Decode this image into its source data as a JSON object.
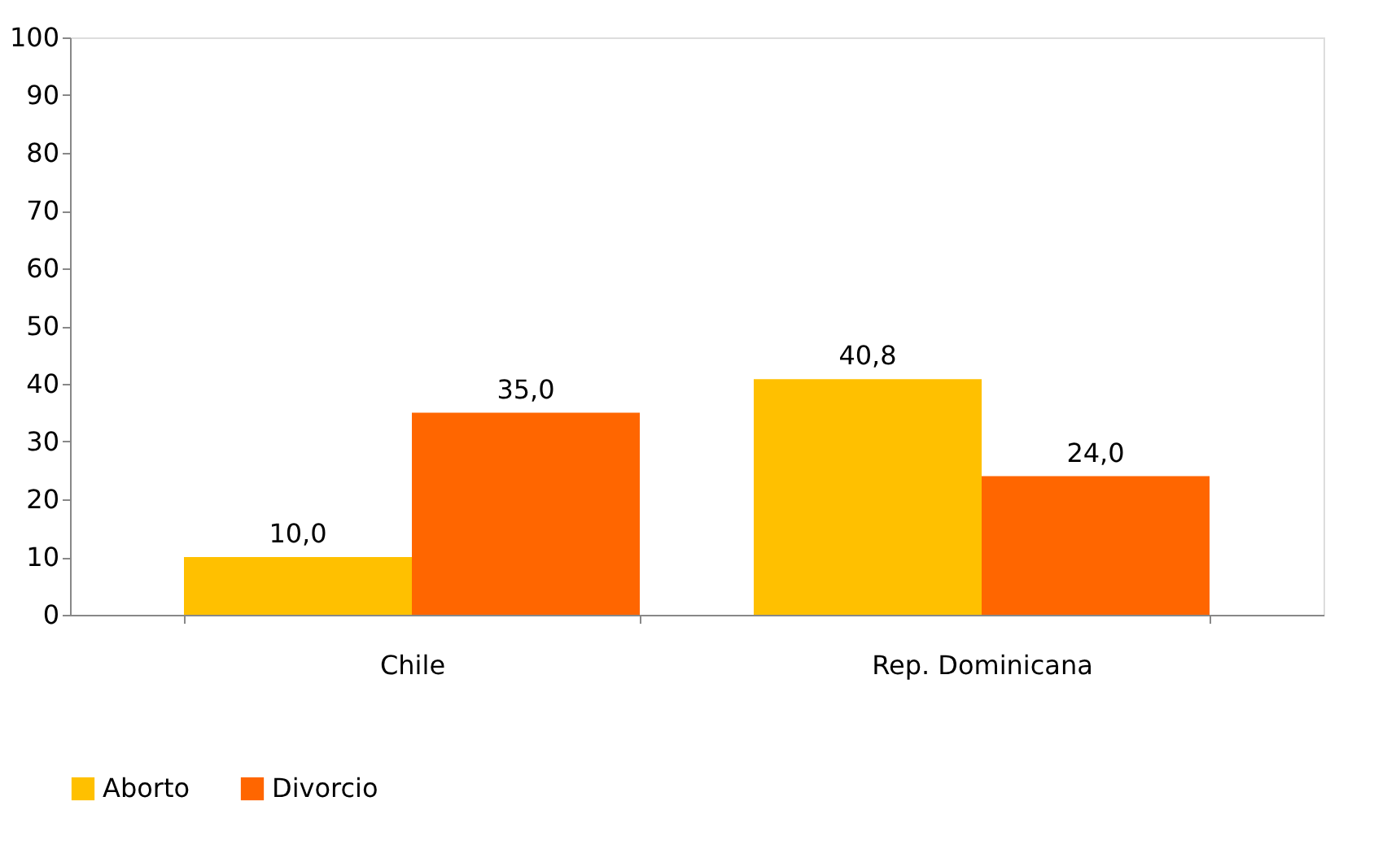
{
  "chart_data": {
    "type": "bar",
    "categories": [
      "Chile",
      "Rep. Dominicana"
    ],
    "series": [
      {
        "name": "Aborto",
        "color": "#ffc000",
        "values": [
          10.0,
          40.8
        ],
        "value_labels": [
          "10,0",
          "40,8"
        ]
      },
      {
        "name": "Divorcio",
        "color": "#ff6600",
        "values": [
          35.0,
          24.0
        ],
        "value_labels": [
          "35,0",
          "24,0"
        ]
      }
    ],
    "ylim": [
      0,
      100
    ],
    "yticks": [
      0,
      10,
      20,
      30,
      40,
      50,
      60,
      70,
      80,
      90,
      100
    ],
    "grid": false,
    "legend": "bottom"
  }
}
